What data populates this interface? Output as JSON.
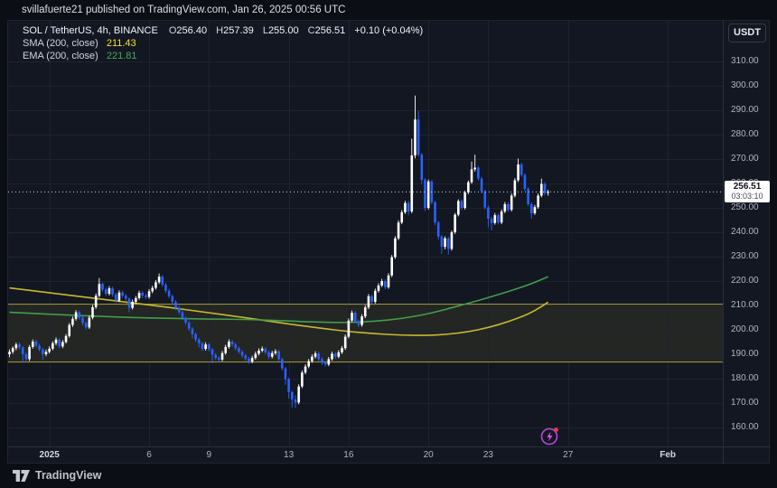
{
  "publisher_bar": {
    "text": "svillafuerte21 published on TradingView.com, Jan 26, 2025 00:56 UTC"
  },
  "legend": {
    "symbol": "SOL / TetherUS, 4h, BINANCE",
    "ohlc": [
      {
        "label": "O",
        "value": "256.40"
      },
      {
        "label": "H",
        "value": "257.39"
      },
      {
        "label": "L",
        "value": "255.00"
      },
      {
        "label": "C",
        "value": "256.51"
      }
    ],
    "change": "+0.10 (+0.04%)",
    "sma_label": "SMA (200, close)",
    "sma_value": "211.43",
    "ema_label": "EMA (200, close)",
    "ema_value": "221.81"
  },
  "price_axis": {
    "currency": "USDT",
    "ticks": [
      {
        "label": "310.00",
        "p": 310
      },
      {
        "label": "300.00",
        "p": 300
      },
      {
        "label": "290.00",
        "p": 290
      },
      {
        "label": "280.00",
        "p": 280
      },
      {
        "label": "270.00",
        "p": 270
      },
      {
        "label": "260.00",
        "p": 260
      },
      {
        "label": "250.00",
        "p": 250
      },
      {
        "label": "240.00",
        "p": 240
      },
      {
        "label": "230.00",
        "p": 230
      },
      {
        "label": "220.00",
        "p": 220
      },
      {
        "label": "210.00",
        "p": 210
      },
      {
        "label": "200.00",
        "p": 200
      },
      {
        "label": "190.00",
        "p": 190
      },
      {
        "label": "180.00",
        "p": 180
      },
      {
        "label": "170.00",
        "p": 170
      },
      {
        "label": "160.00",
        "p": 160
      }
    ],
    "badge": {
      "price": "256.51",
      "countdown": "03:03:10"
    }
  },
  "time_axis": {
    "ticks": [
      {
        "label": "2025",
        "index": 12,
        "major": true
      },
      {
        "label": "6",
        "index": 42
      },
      {
        "label": "9",
        "index": 60
      },
      {
        "label": "13",
        "index": 84
      },
      {
        "label": "16",
        "index": 102
      },
      {
        "label": "20",
        "index": 126
      },
      {
        "label": "23",
        "index": 144
      },
      {
        "label": "27",
        "index": 168
      },
      {
        "label": "Feb",
        "index": 198,
        "major": true
      }
    ]
  },
  "footer": {
    "logo_text": "TradingView"
  },
  "colors": {
    "page_bg": "#0b0e14",
    "card_bg": "#131722",
    "grid": "#1e2330",
    "up": "#ffffff",
    "down": "#2962ff",
    "sma_line": "#c8b92c",
    "ema_line": "#3f9e4c",
    "band_line": "#a89f2f",
    "band_fill": "rgba(185,175,60,0.10)",
    "price_line": "#cbd0da",
    "axis_text": "#b2b5be",
    "icon_purple": "#b44bd9",
    "icon_bolt": "#d356e8",
    "icon_dot": "#f23645"
  },
  "chart_data": {
    "type": "candlestick",
    "title": "SOL / TetherUS, 4h, BINANCE",
    "timeframe": "4h",
    "current_price": 256.51,
    "last_candle": {
      "open": 256.4,
      "high": 257.39,
      "low": 255.0,
      "close": 256.51,
      "change": "+0.10 (+0.04%)"
    },
    "ylim": [
      152,
      327
    ],
    "grid": true,
    "band": {
      "top": 210.7,
      "bottom": 187.0
    },
    "candles": [
      [
        190.0,
        192.0,
        188.8,
        191.0
      ],
      [
        191.0,
        193.2,
        190.2,
        192.5
      ],
      [
        192.5,
        194.8,
        191.6,
        194.0
      ],
      [
        194.0,
        194.9,
        192.0,
        192.8
      ],
      [
        192.8,
        193.4,
        186.5,
        190.0
      ],
      [
        190.0,
        190.8,
        186.9,
        188.0
      ],
      [
        188.0,
        193.8,
        187.2,
        193.0
      ],
      [
        193.0,
        196.1,
        192.3,
        195.2
      ],
      [
        195.2,
        196.0,
        192.8,
        193.5
      ],
      [
        193.5,
        194.3,
        191.2,
        192.0
      ],
      [
        192.0,
        192.6,
        187.8,
        190.0
      ],
      [
        190.0,
        191.9,
        189.2,
        191.0
      ],
      [
        191.0,
        193.2,
        190.3,
        192.3
      ],
      [
        192.3,
        195.3,
        191.6,
        194.5
      ],
      [
        194.5,
        196.9,
        193.7,
        196.0
      ],
      [
        196.0,
        196.6,
        192.4,
        193.2
      ],
      [
        193.2,
        195.8,
        192.5,
        195.0
      ],
      [
        195.0,
        198.3,
        194.4,
        197.5
      ],
      [
        197.5,
        202.8,
        196.8,
        202.0
      ],
      [
        202.0,
        205.4,
        201.2,
        204.5
      ],
      [
        204.5,
        208.1,
        203.8,
        207.2
      ],
      [
        207.2,
        207.9,
        204.1,
        205.0
      ],
      [
        205.0,
        205.8,
        201.9,
        202.8
      ],
      [
        202.8,
        203.5,
        200.1,
        201.0
      ],
      [
        201.0,
        205.9,
        200.4,
        205.0
      ],
      [
        205.0,
        210.2,
        204.3,
        209.3
      ],
      [
        209.3,
        214.9,
        208.6,
        214.0
      ],
      [
        214.0,
        221.2,
        213.3,
        218.8
      ],
      [
        218.8,
        219.5,
        215.6,
        216.5
      ],
      [
        216.5,
        217.3,
        213.9,
        214.8
      ],
      [
        214.8,
        217.9,
        214.1,
        217.0
      ],
      [
        217.0,
        217.7,
        213.6,
        214.5
      ],
      [
        214.5,
        215.2,
        211.1,
        212.0
      ],
      [
        212.0,
        216.2,
        211.4,
        215.3
      ],
      [
        215.3,
        216.1,
        213.1,
        214.0
      ],
      [
        214.0,
        214.7,
        211.9,
        212.8
      ],
      [
        212.8,
        213.4,
        207.2,
        209.0
      ],
      [
        209.0,
        212.4,
        208.3,
        211.5
      ],
      [
        211.5,
        213.9,
        210.8,
        213.0
      ],
      [
        213.0,
        216.1,
        212.3,
        215.2
      ],
      [
        215.2,
        215.9,
        213.1,
        214.0
      ],
      [
        214.0,
        214.8,
        212.6,
        213.5
      ],
      [
        213.5,
        216.7,
        212.8,
        215.8
      ],
      [
        215.8,
        218.1,
        215.0,
        217.2
      ],
      [
        217.2,
        220.4,
        216.5,
        219.5
      ],
      [
        219.5,
        223.1,
        218.8,
        221.8
      ],
      [
        221.8,
        222.5,
        217.6,
        218.5
      ],
      [
        218.5,
        219.2,
        215.1,
        216.0
      ],
      [
        216.0,
        216.8,
        212.9,
        213.8
      ],
      [
        213.8,
        214.5,
        210.6,
        211.5
      ],
      [
        211.5,
        212.2,
        208.1,
        209.0
      ],
      [
        209.0,
        209.8,
        206.3,
        207.2
      ],
      [
        207.2,
        207.9,
        203.9,
        204.8
      ],
      [
        204.8,
        205.5,
        202.1,
        203.0
      ],
      [
        203.0,
        203.7,
        199.6,
        200.5
      ],
      [
        200.5,
        201.2,
        196.5,
        198.2
      ],
      [
        198.2,
        198.9,
        195.1,
        196.0
      ],
      [
        196.0,
        196.7,
        192.8,
        194.5
      ],
      [
        194.5,
        195.1,
        191.3,
        192.2
      ],
      [
        192.2,
        194.9,
        191.5,
        194.0
      ],
      [
        194.0,
        194.7,
        191.1,
        192.0
      ],
      [
        192.0,
        192.6,
        186.3,
        189.8
      ],
      [
        189.8,
        190.5,
        187.6,
        188.5
      ],
      [
        188.5,
        189.3,
        186.9,
        187.8
      ],
      [
        187.8,
        191.4,
        187.1,
        190.5
      ],
      [
        190.5,
        193.9,
        189.8,
        193.0
      ],
      [
        193.0,
        196.1,
        192.3,
        195.2
      ],
      [
        195.2,
        195.9,
        193.1,
        194.0
      ],
      [
        194.0,
        194.7,
        191.6,
        192.5
      ],
      [
        192.5,
        193.1,
        190.2,
        191.0
      ],
      [
        191.0,
        191.7,
        188.6,
        189.5
      ],
      [
        189.5,
        190.1,
        187.3,
        188.2
      ],
      [
        188.2,
        188.9,
        186.1,
        187.0
      ],
      [
        187.0,
        189.4,
        186.3,
        188.5
      ],
      [
        188.5,
        191.1,
        187.8,
        190.2
      ],
      [
        190.2,
        192.4,
        189.5,
        191.5
      ],
      [
        191.5,
        193.2,
        190.8,
        192.3
      ],
      [
        192.3,
        193.0,
        189.9,
        190.8
      ],
      [
        190.8,
        191.5,
        188.1,
        189.0
      ],
      [
        189.0,
        191.4,
        188.3,
        190.5
      ],
      [
        190.5,
        192.1,
        189.7,
        191.2
      ],
      [
        191.2,
        191.8,
        187.1,
        188.0
      ],
      [
        188.0,
        188.6,
        183.3,
        184.2
      ],
      [
        184.2,
        184.8,
        177.5,
        179.8
      ],
      [
        179.8,
        180.4,
        171.8,
        174.5
      ],
      [
        174.5,
        175.1,
        168.2,
        171.5
      ],
      [
        171.5,
        173.2,
        168.0,
        170.2
      ],
      [
        170.2,
        177.7,
        169.5,
        176.8
      ],
      [
        176.8,
        183.4,
        176.1,
        182.5
      ],
      [
        182.5,
        185.9,
        181.8,
        185.0
      ],
      [
        185.0,
        188.1,
        184.3,
        187.2
      ],
      [
        187.2,
        189.9,
        186.5,
        189.0
      ],
      [
        189.0,
        191.2,
        188.3,
        190.3
      ],
      [
        190.3,
        191.0,
        187.1,
        188.0
      ],
      [
        188.0,
        188.7,
        185.6,
        186.5
      ],
      [
        186.5,
        187.2,
        184.9,
        185.8
      ],
      [
        185.8,
        188.9,
        185.1,
        188.0
      ],
      [
        188.0,
        191.1,
        187.3,
        190.2
      ],
      [
        190.2,
        190.9,
        188.1,
        189.0
      ],
      [
        189.0,
        191.7,
        188.4,
        190.8
      ],
      [
        190.8,
        193.4,
        190.1,
        192.5
      ],
      [
        192.5,
        198.1,
        191.8,
        197.2
      ],
      [
        197.2,
        204.7,
        196.5,
        203.8
      ],
      [
        203.8,
        207.9,
        203.1,
        207.0
      ],
      [
        207.0,
        207.7,
        202.6,
        203.5
      ],
      [
        203.5,
        204.2,
        201.1,
        202.0
      ],
      [
        202.0,
        206.4,
        201.3,
        205.5
      ],
      [
        205.5,
        210.1,
        204.8,
        209.2
      ],
      [
        209.2,
        214.7,
        208.5,
        213.8
      ],
      [
        213.8,
        214.5,
        210.6,
        211.5
      ],
      [
        211.5,
        216.9,
        210.8,
        216.0
      ],
      [
        216.0,
        219.1,
        215.3,
        218.2
      ],
      [
        218.2,
        220.9,
        217.5,
        220.0
      ],
      [
        220.0,
        220.7,
        216.6,
        217.5
      ],
      [
        217.5,
        223.2,
        216.8,
        222.3
      ],
      [
        222.3,
        230.7,
        221.6,
        229.8
      ],
      [
        229.8,
        238.4,
        229.1,
        237.5
      ],
      [
        237.5,
        244.9,
        236.8,
        244.0
      ],
      [
        244.0,
        249.1,
        243.3,
        248.2
      ],
      [
        248.2,
        252.9,
        247.5,
        252.0
      ],
      [
        252.0,
        252.8,
        246.9,
        248.5
      ],
      [
        248.5,
        278.3,
        247.8,
        271.5
      ],
      [
        271.5,
        296.0,
        270.3,
        286.2
      ],
      [
        286.2,
        289.8,
        270.9,
        271.8
      ],
      [
        271.8,
        272.5,
        259.8,
        261.5
      ],
      [
        261.5,
        262.2,
        248.7,
        250.0
      ],
      [
        250.0,
        261.6,
        249.3,
        260.8
      ],
      [
        260.8,
        261.5,
        251.4,
        252.3
      ],
      [
        252.3,
        253.0,
        242.9,
        244.0
      ],
      [
        244.0,
        244.7,
        236.9,
        238.2
      ],
      [
        238.2,
        238.9,
        231.2,
        234.0
      ],
      [
        234.0,
        238.3,
        233.0,
        237.5
      ],
      [
        237.5,
        238.1,
        230.8,
        233.2
      ],
      [
        233.2,
        240.7,
        232.5,
        240.0
      ],
      [
        240.0,
        247.9,
        239.3,
        247.2
      ],
      [
        247.2,
        253.5,
        246.5,
        252.8
      ],
      [
        252.8,
        253.5,
        249.1,
        250.0
      ],
      [
        250.0,
        257.0,
        249.3,
        256.3
      ],
      [
        256.3,
        261.2,
        255.6,
        260.5
      ],
      [
        260.5,
        269.0,
        259.8,
        265.8
      ],
      [
        265.8,
        271.8,
        264.9,
        266.5
      ],
      [
        266.5,
        267.2,
        261.1,
        262.0
      ],
      [
        262.0,
        262.7,
        255.9,
        256.8
      ],
      [
        256.8,
        257.5,
        249.3,
        250.2
      ],
      [
        250.2,
        250.9,
        242.0,
        245.5
      ],
      [
        245.5,
        246.2,
        240.8,
        243.8
      ],
      [
        243.8,
        247.9,
        243.1,
        247.0
      ],
      [
        247.0,
        247.7,
        243.2,
        244.0
      ],
      [
        244.0,
        249.4,
        243.3,
        248.5
      ],
      [
        248.5,
        252.4,
        247.8,
        251.5
      ],
      [
        251.5,
        252.2,
        248.4,
        249.2
      ],
      [
        249.2,
        255.9,
        248.5,
        255.0
      ],
      [
        255.0,
        262.2,
        254.3,
        261.3
      ],
      [
        261.3,
        270.2,
        260.6,
        267.8
      ],
      [
        267.8,
        268.5,
        262.7,
        263.5
      ],
      [
        263.5,
        264.2,
        256.9,
        257.8
      ],
      [
        257.8,
        258.5,
        250.7,
        251.5
      ],
      [
        251.5,
        252.2,
        245.5,
        247.8
      ],
      [
        247.8,
        251.2,
        247.1,
        250.3
      ],
      [
        250.3,
        255.9,
        249.6,
        255.0
      ],
      [
        255.0,
        262.0,
        254.3,
        259.8
      ],
      [
        259.8,
        260.5,
        255.2,
        256.0
      ],
      [
        256.4,
        257.39,
        255.0,
        256.51
      ]
    ],
    "overlays": {
      "sma200": {
        "name": "SMA (200, close)",
        "value": 211.43,
        "points": [
          [
            0,
            217.2
          ],
          [
            12,
            215.2
          ],
          [
            24,
            213.2
          ],
          [
            36,
            211.2
          ],
          [
            48,
            209.2
          ],
          [
            60,
            207.0
          ],
          [
            72,
            204.8
          ],
          [
            84,
            202.4
          ],
          [
            94,
            200.6
          ],
          [
            102,
            199.3
          ],
          [
            110,
            198.4
          ],
          [
            118,
            197.8
          ],
          [
            126,
            197.7
          ],
          [
            132,
            198.2
          ],
          [
            138,
            199.2
          ],
          [
            144,
            200.9
          ],
          [
            150,
            203.3
          ],
          [
            156,
            206.4
          ],
          [
            160,
            209.5
          ],
          [
            162,
            211.4
          ]
        ]
      },
      "ema200": {
        "name": "EMA (200, close)",
        "value": 221.81,
        "points": [
          [
            0,
            207.2
          ],
          [
            12,
            206.4
          ],
          [
            24,
            205.7
          ],
          [
            36,
            205.1
          ],
          [
            48,
            204.7
          ],
          [
            60,
            204.4
          ],
          [
            72,
            204.3
          ],
          [
            84,
            203.6
          ],
          [
            94,
            203.1
          ],
          [
            102,
            203.0
          ],
          [
            110,
            203.5
          ],
          [
            118,
            204.6
          ],
          [
            126,
            206.6
          ],
          [
            132,
            208.7
          ],
          [
            138,
            210.9
          ],
          [
            144,
            213.2
          ],
          [
            150,
            215.7
          ],
          [
            156,
            218.4
          ],
          [
            160,
            220.6
          ],
          [
            162,
            221.8
          ]
        ]
      }
    }
  }
}
